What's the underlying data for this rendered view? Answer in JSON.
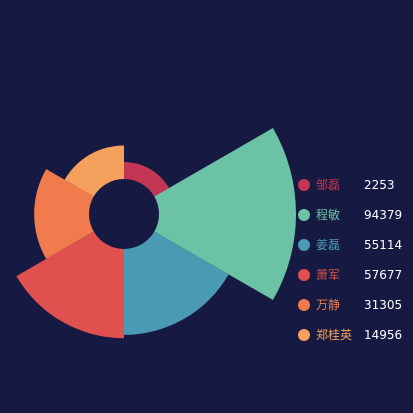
{
  "chart_data": {
    "type": "pie",
    "subtype": "rose",
    "legend_position": "right",
    "series": [
      {
        "name": "邹磊",
        "value": 2253,
        "color": "#c23653"
      },
      {
        "name": "程敏",
        "value": 94379,
        "color": "#6cc2a4"
      },
      {
        "name": "姜磊",
        "value": 55114,
        "color": "#4a9ab4"
      },
      {
        "name": "萧军",
        "value": 57677,
        "color": "#df504e"
      },
      {
        "name": "万静",
        "value": 31305,
        "color": "#f17b4c"
      },
      {
        "name": "郑桂英",
        "value": 14956,
        "color": "#f5a05c"
      }
    ]
  }
}
